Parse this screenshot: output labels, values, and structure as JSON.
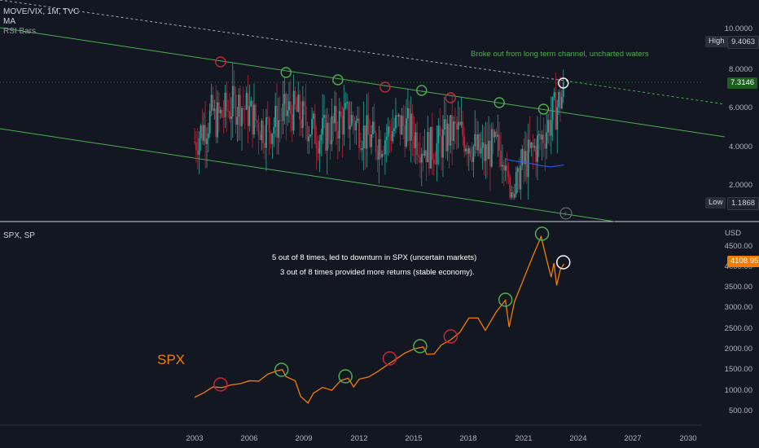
{
  "header": {
    "symbol_line": "MOVE/VIX, 1M, TVC",
    "indicator_ma": "MA",
    "indicator_rsi": "RSI Bars",
    "lower_symbol": "SPX, SP"
  },
  "colors": {
    "background": "#131722",
    "bull": "#26a69a",
    "bear": "#b0283c",
    "channel": "#4caf50",
    "spx_line": "#f57c00",
    "ma_line": "#2962ff",
    "circle_green": "#4caf50",
    "circle_red": "#c2283a",
    "circle_white": "#ffffff"
  },
  "chart_data": [
    {
      "type": "candlestick",
      "title": "MOVE/VIX",
      "interval": "1M",
      "source": "TVC",
      "x_range": [
        "2003",
        "2024"
      ],
      "y_axis_ticks": [
        "10.0000",
        "8.0000",
        "6.0000",
        "4.0000",
        "2.0000"
      ],
      "high_label": "High",
      "high_value": "9.4063",
      "last_value": "7.3146",
      "low_label": "Low",
      "low_value": "1.1868",
      "annotation": "Broke out from long term channel, uncharted waters",
      "marked_points": [
        {
          "date": "2004-06",
          "color": "red"
        },
        {
          "date": "2008-01",
          "color": "green"
        },
        {
          "date": "2010-11",
          "color": "green"
        },
        {
          "date": "2013-06",
          "color": "red"
        },
        {
          "date": "2015-06",
          "color": "green"
        },
        {
          "date": "2017-01",
          "color": "red"
        },
        {
          "date": "2019-09",
          "color": "green"
        },
        {
          "date": "2022-02",
          "color": "green"
        },
        {
          "date": "2023-03",
          "color": "white"
        }
      ]
    },
    {
      "type": "line",
      "title": "SPX",
      "exchange": "SP",
      "currency": "USD",
      "series_label": "SPX",
      "last_value": "4108.95",
      "y_axis_ticks": [
        "4500.00",
        "4000.00",
        "3500.00",
        "3000.00",
        "2500.00",
        "2000.00",
        "1500.00",
        "1000.00",
        "500.00"
      ],
      "x_ticks": [
        "2003",
        "2006",
        "2009",
        "2012",
        "2015",
        "2018",
        "2021",
        "2024",
        "2027",
        "2030"
      ],
      "annotation_line1": "5 out of 8 times, led to downturn in SPX (uncertain markets)",
      "annotation_line2": "3 out of 8 times provided more returns (stable economy).",
      "points": [
        {
          "x": 2003.0,
          "y": 880
        },
        {
          "x": 2003.5,
          "y": 990
        },
        {
          "x": 2004.0,
          "y": 1130
        },
        {
          "x": 2004.5,
          "y": 1115
        },
        {
          "x": 2005.0,
          "y": 1180
        },
        {
          "x": 2005.5,
          "y": 1210
        },
        {
          "x": 2006.0,
          "y": 1280
        },
        {
          "x": 2006.5,
          "y": 1270
        },
        {
          "x": 2007.0,
          "y": 1440
        },
        {
          "x": 2007.5,
          "y": 1520
        },
        {
          "x": 2007.8,
          "y": 1550
        },
        {
          "x": 2008.0,
          "y": 1380
        },
        {
          "x": 2008.5,
          "y": 1280
        },
        {
          "x": 2008.8,
          "y": 900
        },
        {
          "x": 2009.2,
          "y": 740
        },
        {
          "x": 2009.5,
          "y": 980
        },
        {
          "x": 2010.0,
          "y": 1120
        },
        {
          "x": 2010.5,
          "y": 1050
        },
        {
          "x": 2011.0,
          "y": 1290
        },
        {
          "x": 2011.4,
          "y": 1340
        },
        {
          "x": 2011.7,
          "y": 1130
        },
        {
          "x": 2012.0,
          "y": 1320
        },
        {
          "x": 2012.5,
          "y": 1370
        },
        {
          "x": 2013.0,
          "y": 1500
        },
        {
          "x": 2013.5,
          "y": 1650
        },
        {
          "x": 2014.0,
          "y": 1800
        },
        {
          "x": 2014.5,
          "y": 1950
        },
        {
          "x": 2015.0,
          "y": 2050
        },
        {
          "x": 2015.5,
          "y": 2100
        },
        {
          "x": 2015.7,
          "y": 1920
        },
        {
          "x": 2016.1,
          "y": 1930
        },
        {
          "x": 2016.5,
          "y": 2150
        },
        {
          "x": 2017.0,
          "y": 2270
        },
        {
          "x": 2017.5,
          "y": 2450
        },
        {
          "x": 2018.0,
          "y": 2800
        },
        {
          "x": 2018.5,
          "y": 2800
        },
        {
          "x": 2018.9,
          "y": 2500
        },
        {
          "x": 2019.5,
          "y": 2950
        },
        {
          "x": 2020.0,
          "y": 3230
        },
        {
          "x": 2020.2,
          "y": 2580
        },
        {
          "x": 2020.5,
          "y": 3200
        },
        {
          "x": 2021.0,
          "y": 3750
        },
        {
          "x": 2021.5,
          "y": 4300
        },
        {
          "x": 2021.95,
          "y": 4770
        },
        {
          "x": 2022.3,
          "y": 4130
        },
        {
          "x": 2022.5,
          "y": 3790
        },
        {
          "x": 2022.65,
          "y": 4130
        },
        {
          "x": 2022.8,
          "y": 3590
        },
        {
          "x": 2023.0,
          "y": 3970
        },
        {
          "x": 2023.2,
          "y": 4109
        }
      ],
      "marked_points": [
        {
          "date": "2004-06",
          "color": "red"
        },
        {
          "date": "2007-10",
          "color": "green"
        },
        {
          "date": "2011-04",
          "color": "green"
        },
        {
          "date": "2013-09",
          "color": "red"
        },
        {
          "date": "2015-05",
          "color": "green"
        },
        {
          "date": "2017-01",
          "color": "red"
        },
        {
          "date": "2020-01",
          "color": "green"
        },
        {
          "date": "2022-01",
          "color": "green"
        },
        {
          "date": "2023-03",
          "color": "white"
        }
      ]
    }
  ]
}
